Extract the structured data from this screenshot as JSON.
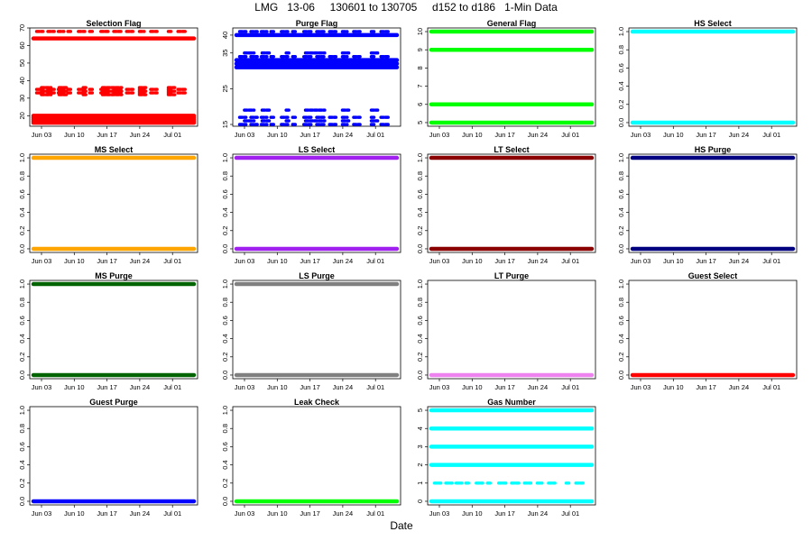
{
  "title": "LMG   13-06     130601 to 130705     d152 to d186   1-Min Data",
  "x_axis_label": "Date",
  "chart_data": [
    {
      "type": "scatter",
      "title": "Selection Flag",
      "color": "#ff0000",
      "ylim": [
        14,
        70
      ],
      "yticks": [
        {
          "v": 20,
          "label": "20"
        },
        {
          "v": 30,
          "label": "30"
        },
        {
          "v": 40,
          "label": "40"
        },
        {
          "v": 50,
          "label": "50"
        },
        {
          "v": 60,
          "label": "60"
        },
        {
          "v": 70,
          "label": "70"
        }
      ],
      "xticks": [
        "Jun 03",
        "Jun 10",
        "Jun 17",
        "Jun 24",
        "Jul 01"
      ],
      "bands": [
        {
          "y": 16,
          "coverage": "full"
        },
        {
          "y": 17,
          "coverage": "full"
        },
        {
          "y": 18,
          "coverage": "full"
        },
        {
          "y": 19,
          "coverage": "full"
        },
        {
          "y": 20,
          "coverage": "full"
        },
        {
          "y": 64,
          "coverage": "full"
        },
        {
          "y": 68,
          "coverage": "sparse"
        },
        {
          "y": 32,
          "coverage": "sparse"
        },
        {
          "y": 33,
          "coverage": "sparse"
        },
        {
          "y": 34,
          "coverage": "sparse"
        },
        {
          "y": 35,
          "coverage": "sparse"
        },
        {
          "y": 36,
          "coverage": "sparse"
        }
      ]
    },
    {
      "type": "scatter",
      "title": "Purge Flag",
      "color": "#0000ff",
      "ylim": [
        14.5,
        42
      ],
      "yticks": [
        {
          "v": 15,
          "label": "15"
        },
        {
          "v": 25,
          "label": "25"
        },
        {
          "v": 35,
          "label": "35"
        },
        {
          "v": 40,
          "label": "40"
        }
      ],
      "xticks": [
        "Jun 03",
        "Jun 10",
        "Jun 17",
        "Jun 24",
        "Jul 01"
      ],
      "bands": [
        {
          "y": 41,
          "coverage": "sparse"
        },
        {
          "y": 40,
          "coverage": "full"
        },
        {
          "y": 33,
          "coverage": "full"
        },
        {
          "y": 32,
          "coverage": "full"
        },
        {
          "y": 31,
          "coverage": "full"
        },
        {
          "y": 35,
          "coverage": "sparse"
        },
        {
          "y": 34,
          "coverage": "sparse"
        },
        {
          "y": 19,
          "coverage": "sparse"
        },
        {
          "y": 17,
          "coverage": "sparse"
        },
        {
          "y": 16,
          "coverage": "sparse"
        },
        {
          "y": 15,
          "coverage": "sparse"
        }
      ]
    },
    {
      "type": "scatter",
      "title": "General Flag",
      "color": "#00ff00",
      "ylim": [
        4.8,
        10.2
      ],
      "yticks": [
        {
          "v": 5,
          "label": "5"
        },
        {
          "v": 6,
          "label": "6"
        },
        {
          "v": 7,
          "label": "7"
        },
        {
          "v": 8,
          "label": "8"
        },
        {
          "v": 9,
          "label": "9"
        },
        {
          "v": 10,
          "label": "10"
        }
      ],
      "xticks": [
        "Jun 03",
        "Jun 10",
        "Jun 17",
        "Jun 24",
        "Jul 01"
      ],
      "bands": [
        {
          "y": 10,
          "coverage": "full"
        },
        {
          "y": 9,
          "coverage": "full"
        },
        {
          "y": 6,
          "coverage": "full"
        },
        {
          "y": 5,
          "coverage": "full"
        }
      ]
    },
    {
      "type": "scatter",
      "title": "HS Select",
      "color": "#00ffff",
      "ylim": [
        -0.04,
        1.04
      ],
      "yticks": [
        {
          "v": 0,
          "label": "0.0"
        },
        {
          "v": 0.2,
          "label": "0.2"
        },
        {
          "v": 0.4,
          "label": "0.4"
        },
        {
          "v": 0.6,
          "label": "0.6"
        },
        {
          "v": 0.8,
          "label": "0.8"
        },
        {
          "v": 1,
          "label": "1.0"
        }
      ],
      "xticks": [
        "Jun 03",
        "Jun 10",
        "Jun 17",
        "Jun 24",
        "Jul 01"
      ],
      "bands": [
        {
          "y": 1,
          "coverage": "full"
        },
        {
          "y": 0,
          "coverage": "full"
        }
      ]
    },
    {
      "type": "scatter",
      "title": "MS Select",
      "color": "#ffa500",
      "ylim": [
        -0.04,
        1.04
      ],
      "yticks": [
        {
          "v": 0,
          "label": "0.0"
        },
        {
          "v": 0.2,
          "label": "0.2"
        },
        {
          "v": 0.4,
          "label": "0.4"
        },
        {
          "v": 0.6,
          "label": "0.6"
        },
        {
          "v": 0.8,
          "label": "0.8"
        },
        {
          "v": 1,
          "label": "1.0"
        }
      ],
      "xticks": [
        "Jun 03",
        "Jun 10",
        "Jun 17",
        "Jun 24",
        "Jul 01"
      ],
      "bands": [
        {
          "y": 1,
          "coverage": "full"
        },
        {
          "y": 0,
          "coverage": "full"
        }
      ]
    },
    {
      "type": "scatter",
      "title": "LS Select",
      "color": "#a020f0",
      "ylim": [
        -0.04,
        1.04
      ],
      "yticks": [
        {
          "v": 0,
          "label": "0.0"
        },
        {
          "v": 0.2,
          "label": "0.2"
        },
        {
          "v": 0.4,
          "label": "0.4"
        },
        {
          "v": 0.6,
          "label": "0.6"
        },
        {
          "v": 0.8,
          "label": "0.8"
        },
        {
          "v": 1,
          "label": "1.0"
        }
      ],
      "xticks": [
        "Jun 03",
        "Jun 10",
        "Jun 17",
        "Jun 24",
        "Jul 01"
      ],
      "bands": [
        {
          "y": 1,
          "coverage": "full"
        },
        {
          "y": 0,
          "coverage": "full"
        }
      ]
    },
    {
      "type": "scatter",
      "title": "LT Select",
      "color": "#8b0000",
      "ylim": [
        -0.04,
        1.04
      ],
      "yticks": [
        {
          "v": 0,
          "label": "0.0"
        },
        {
          "v": 0.2,
          "label": "0.2"
        },
        {
          "v": 0.4,
          "label": "0.4"
        },
        {
          "v": 0.6,
          "label": "0.6"
        },
        {
          "v": 0.8,
          "label": "0.8"
        },
        {
          "v": 1,
          "label": "1.0"
        }
      ],
      "xticks": [
        "Jun 03",
        "Jun 10",
        "Jun 17",
        "Jun 24",
        "Jul 01"
      ],
      "bands": [
        {
          "y": 1,
          "coverage": "full"
        },
        {
          "y": 0,
          "coverage": "full"
        }
      ]
    },
    {
      "type": "scatter",
      "title": "HS Purge",
      "color": "#000080",
      "ylim": [
        -0.04,
        1.04
      ],
      "yticks": [
        {
          "v": 0,
          "label": "0.0"
        },
        {
          "v": 0.2,
          "label": "0.2"
        },
        {
          "v": 0.4,
          "label": "0.4"
        },
        {
          "v": 0.6,
          "label": "0.6"
        },
        {
          "v": 0.8,
          "label": "0.8"
        },
        {
          "v": 1,
          "label": "1.0"
        }
      ],
      "xticks": [
        "Jun 03",
        "Jun 10",
        "Jun 17",
        "Jun 24",
        "Jul 01"
      ],
      "bands": [
        {
          "y": 1,
          "coverage": "full"
        },
        {
          "y": 0,
          "coverage": "full"
        }
      ]
    },
    {
      "type": "scatter",
      "title": "MS Purge",
      "color": "#006400",
      "ylim": [
        -0.04,
        1.04
      ],
      "yticks": [
        {
          "v": 0,
          "label": "0.0"
        },
        {
          "v": 0.2,
          "label": "0.2"
        },
        {
          "v": 0.4,
          "label": "0.4"
        },
        {
          "v": 0.6,
          "label": "0.6"
        },
        {
          "v": 0.8,
          "label": "0.8"
        },
        {
          "v": 1,
          "label": "1.0"
        }
      ],
      "xticks": [
        "Jun 03",
        "Jun 10",
        "Jun 17",
        "Jun 24",
        "Jul 01"
      ],
      "bands": [
        {
          "y": 1,
          "coverage": "full"
        },
        {
          "y": 0,
          "coverage": "full"
        }
      ]
    },
    {
      "type": "scatter",
      "title": "LS Purge",
      "color": "#808080",
      "ylim": [
        -0.04,
        1.04
      ],
      "yticks": [
        {
          "v": 0,
          "label": "0.0"
        },
        {
          "v": 0.2,
          "label": "0.2"
        },
        {
          "v": 0.4,
          "label": "0.4"
        },
        {
          "v": 0.6,
          "label": "0.6"
        },
        {
          "v": 0.8,
          "label": "0.8"
        },
        {
          "v": 1,
          "label": "1.0"
        }
      ],
      "xticks": [
        "Jun 03",
        "Jun 10",
        "Jun 17",
        "Jun 24",
        "Jul 01"
      ],
      "bands": [
        {
          "y": 1,
          "coverage": "full"
        },
        {
          "y": 0,
          "coverage": "full"
        }
      ]
    },
    {
      "type": "scatter",
      "title": "LT Purge",
      "color": "#ee82ee",
      "ylim": [
        -0.04,
        1.04
      ],
      "yticks": [
        {
          "v": 0,
          "label": "0.0"
        },
        {
          "v": 0.2,
          "label": "0.2"
        },
        {
          "v": 0.4,
          "label": "0.4"
        },
        {
          "v": 0.6,
          "label": "0.6"
        },
        {
          "v": 0.8,
          "label": "0.8"
        },
        {
          "v": 1,
          "label": "1.0"
        }
      ],
      "xticks": [
        "Jun 03",
        "Jun 10",
        "Jun 17",
        "Jun 24",
        "Jul 01"
      ],
      "bands": [
        {
          "y": 0,
          "coverage": "full"
        }
      ]
    },
    {
      "type": "scatter",
      "title": "Guest Select",
      "color": "#ff0000",
      "ylim": [
        -0.04,
        1.04
      ],
      "yticks": [
        {
          "v": 0,
          "label": "0.0"
        },
        {
          "v": 0.2,
          "label": "0.2"
        },
        {
          "v": 0.4,
          "label": "0.4"
        },
        {
          "v": 0.6,
          "label": "0.6"
        },
        {
          "v": 0.8,
          "label": "0.8"
        },
        {
          "v": 1,
          "label": "1.0"
        }
      ],
      "xticks": [
        "Jun 03",
        "Jun 10",
        "Jun 17",
        "Jun 24",
        "Jul 01"
      ],
      "bands": [
        {
          "y": 0,
          "coverage": "full"
        }
      ]
    },
    {
      "type": "scatter",
      "title": "Guest Purge",
      "color": "#0000ff",
      "ylim": [
        -0.04,
        1.04
      ],
      "yticks": [
        {
          "v": 0,
          "label": "0.0"
        },
        {
          "v": 0.2,
          "label": "0.2"
        },
        {
          "v": 0.4,
          "label": "0.4"
        },
        {
          "v": 0.6,
          "label": "0.6"
        },
        {
          "v": 0.8,
          "label": "0.8"
        },
        {
          "v": 1,
          "label": "1.0"
        }
      ],
      "xticks": [
        "Jun 03",
        "Jun 10",
        "Jun 17",
        "Jun 24",
        "Jul 01"
      ],
      "bands": [
        {
          "y": 0,
          "coverage": "full"
        }
      ]
    },
    {
      "type": "scatter",
      "title": "Leak Check",
      "color": "#00ff00",
      "ylim": [
        -0.04,
        1.04
      ],
      "yticks": [
        {
          "v": 0,
          "label": "0.0"
        },
        {
          "v": 0.2,
          "label": "0.2"
        },
        {
          "v": 0.4,
          "label": "0.4"
        },
        {
          "v": 0.6,
          "label": "0.6"
        },
        {
          "v": 0.8,
          "label": "0.8"
        },
        {
          "v": 1,
          "label": "1.0"
        }
      ],
      "xticks": [
        "Jun 03",
        "Jun 10",
        "Jun 17",
        "Jun 24",
        "Jul 01"
      ],
      "bands": [
        {
          "y": 0,
          "coverage": "full"
        }
      ]
    },
    {
      "type": "scatter",
      "title": "Gas Number",
      "color": "#00ffff",
      "ylim": [
        -0.2,
        5.2
      ],
      "yticks": [
        {
          "v": 0,
          "label": "0"
        },
        {
          "v": 1,
          "label": "1"
        },
        {
          "v": 2,
          "label": "2"
        },
        {
          "v": 3,
          "label": "3"
        },
        {
          "v": 4,
          "label": "4"
        },
        {
          "v": 5,
          "label": "5"
        }
      ],
      "xticks": [
        "Jun 03",
        "Jun 10",
        "Jun 17",
        "Jun 24",
        "Jul 01"
      ],
      "bands": [
        {
          "y": 5,
          "coverage": "full"
        },
        {
          "y": 4,
          "coverage": "full"
        },
        {
          "y": 3,
          "coverage": "full"
        },
        {
          "y": 2,
          "coverage": "full"
        },
        {
          "y": 1,
          "coverage": "sparse"
        },
        {
          "y": 0,
          "coverage": "full"
        }
      ]
    }
  ]
}
